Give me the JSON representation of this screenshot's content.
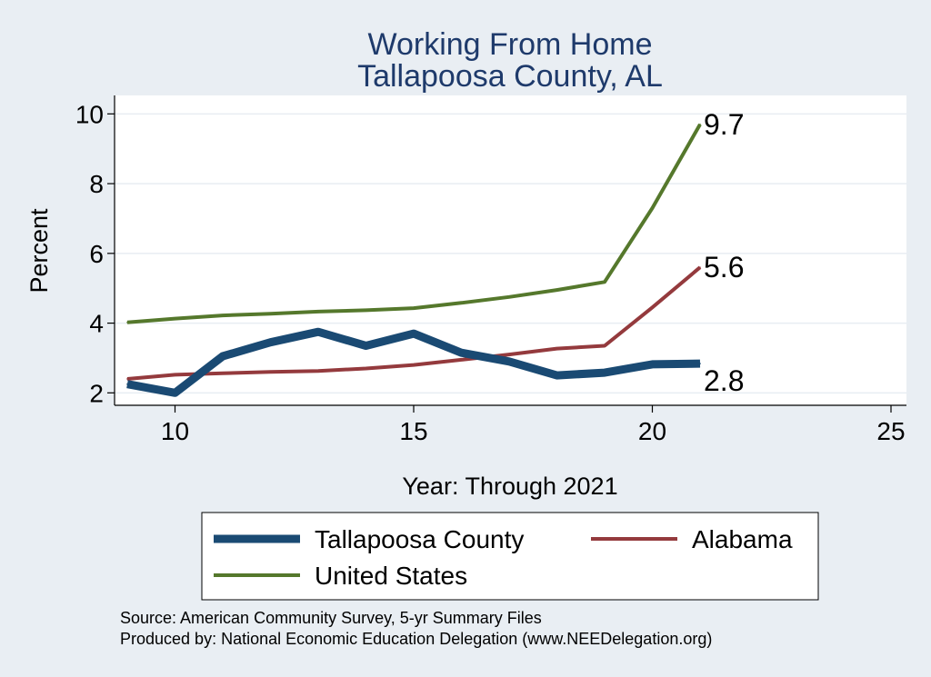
{
  "chart_data": {
    "type": "line",
    "title": "Working From Home",
    "subtitle": "Tallapoosa County, AL",
    "xlabel": "Year: Through 2021",
    "ylabel": "Percent",
    "xlim": [
      9,
      25
    ],
    "ylim": [
      1.8,
      10.4
    ],
    "xticks": [
      10,
      15,
      20,
      25
    ],
    "yticks": [
      2,
      4,
      6,
      8,
      10
    ],
    "grid": true,
    "legend_position": "bottom",
    "series": [
      {
        "name": "Tallapoosa County",
        "color": "#1a4a73",
        "x": [
          9,
          10,
          11,
          12,
          13,
          14,
          15,
          16,
          17,
          18,
          19,
          20,
          21
        ],
        "y": [
          2.25,
          2.0,
          3.05,
          3.45,
          3.75,
          3.35,
          3.7,
          3.15,
          2.9,
          2.5,
          2.58,
          2.82,
          2.84
        ],
        "end_label": "2.8"
      },
      {
        "name": "Alabama",
        "color": "#943a3d",
        "x": [
          9,
          10,
          11,
          12,
          13,
          14,
          15,
          16,
          17,
          18,
          19,
          20,
          21
        ],
        "y": [
          2.4,
          2.52,
          2.56,
          2.6,
          2.63,
          2.7,
          2.8,
          2.95,
          3.1,
          3.27,
          3.35,
          4.45,
          5.6
        ],
        "end_label": "5.6"
      },
      {
        "name": "United States",
        "color": "#55782c",
        "x": [
          9,
          10,
          11,
          12,
          13,
          14,
          15,
          16,
          17,
          18,
          19,
          20,
          21
        ],
        "y": [
          4.02,
          4.13,
          4.22,
          4.27,
          4.33,
          4.37,
          4.43,
          4.58,
          4.75,
          4.95,
          5.18,
          7.3,
          9.7
        ],
        "end_label": "9.7"
      }
    ]
  },
  "notes": [
    "Source: American Community Survey, 5-yr Summary Files",
    "Produced by: National Economic Education Delegation (www.NEEDelegation.org)"
  ]
}
